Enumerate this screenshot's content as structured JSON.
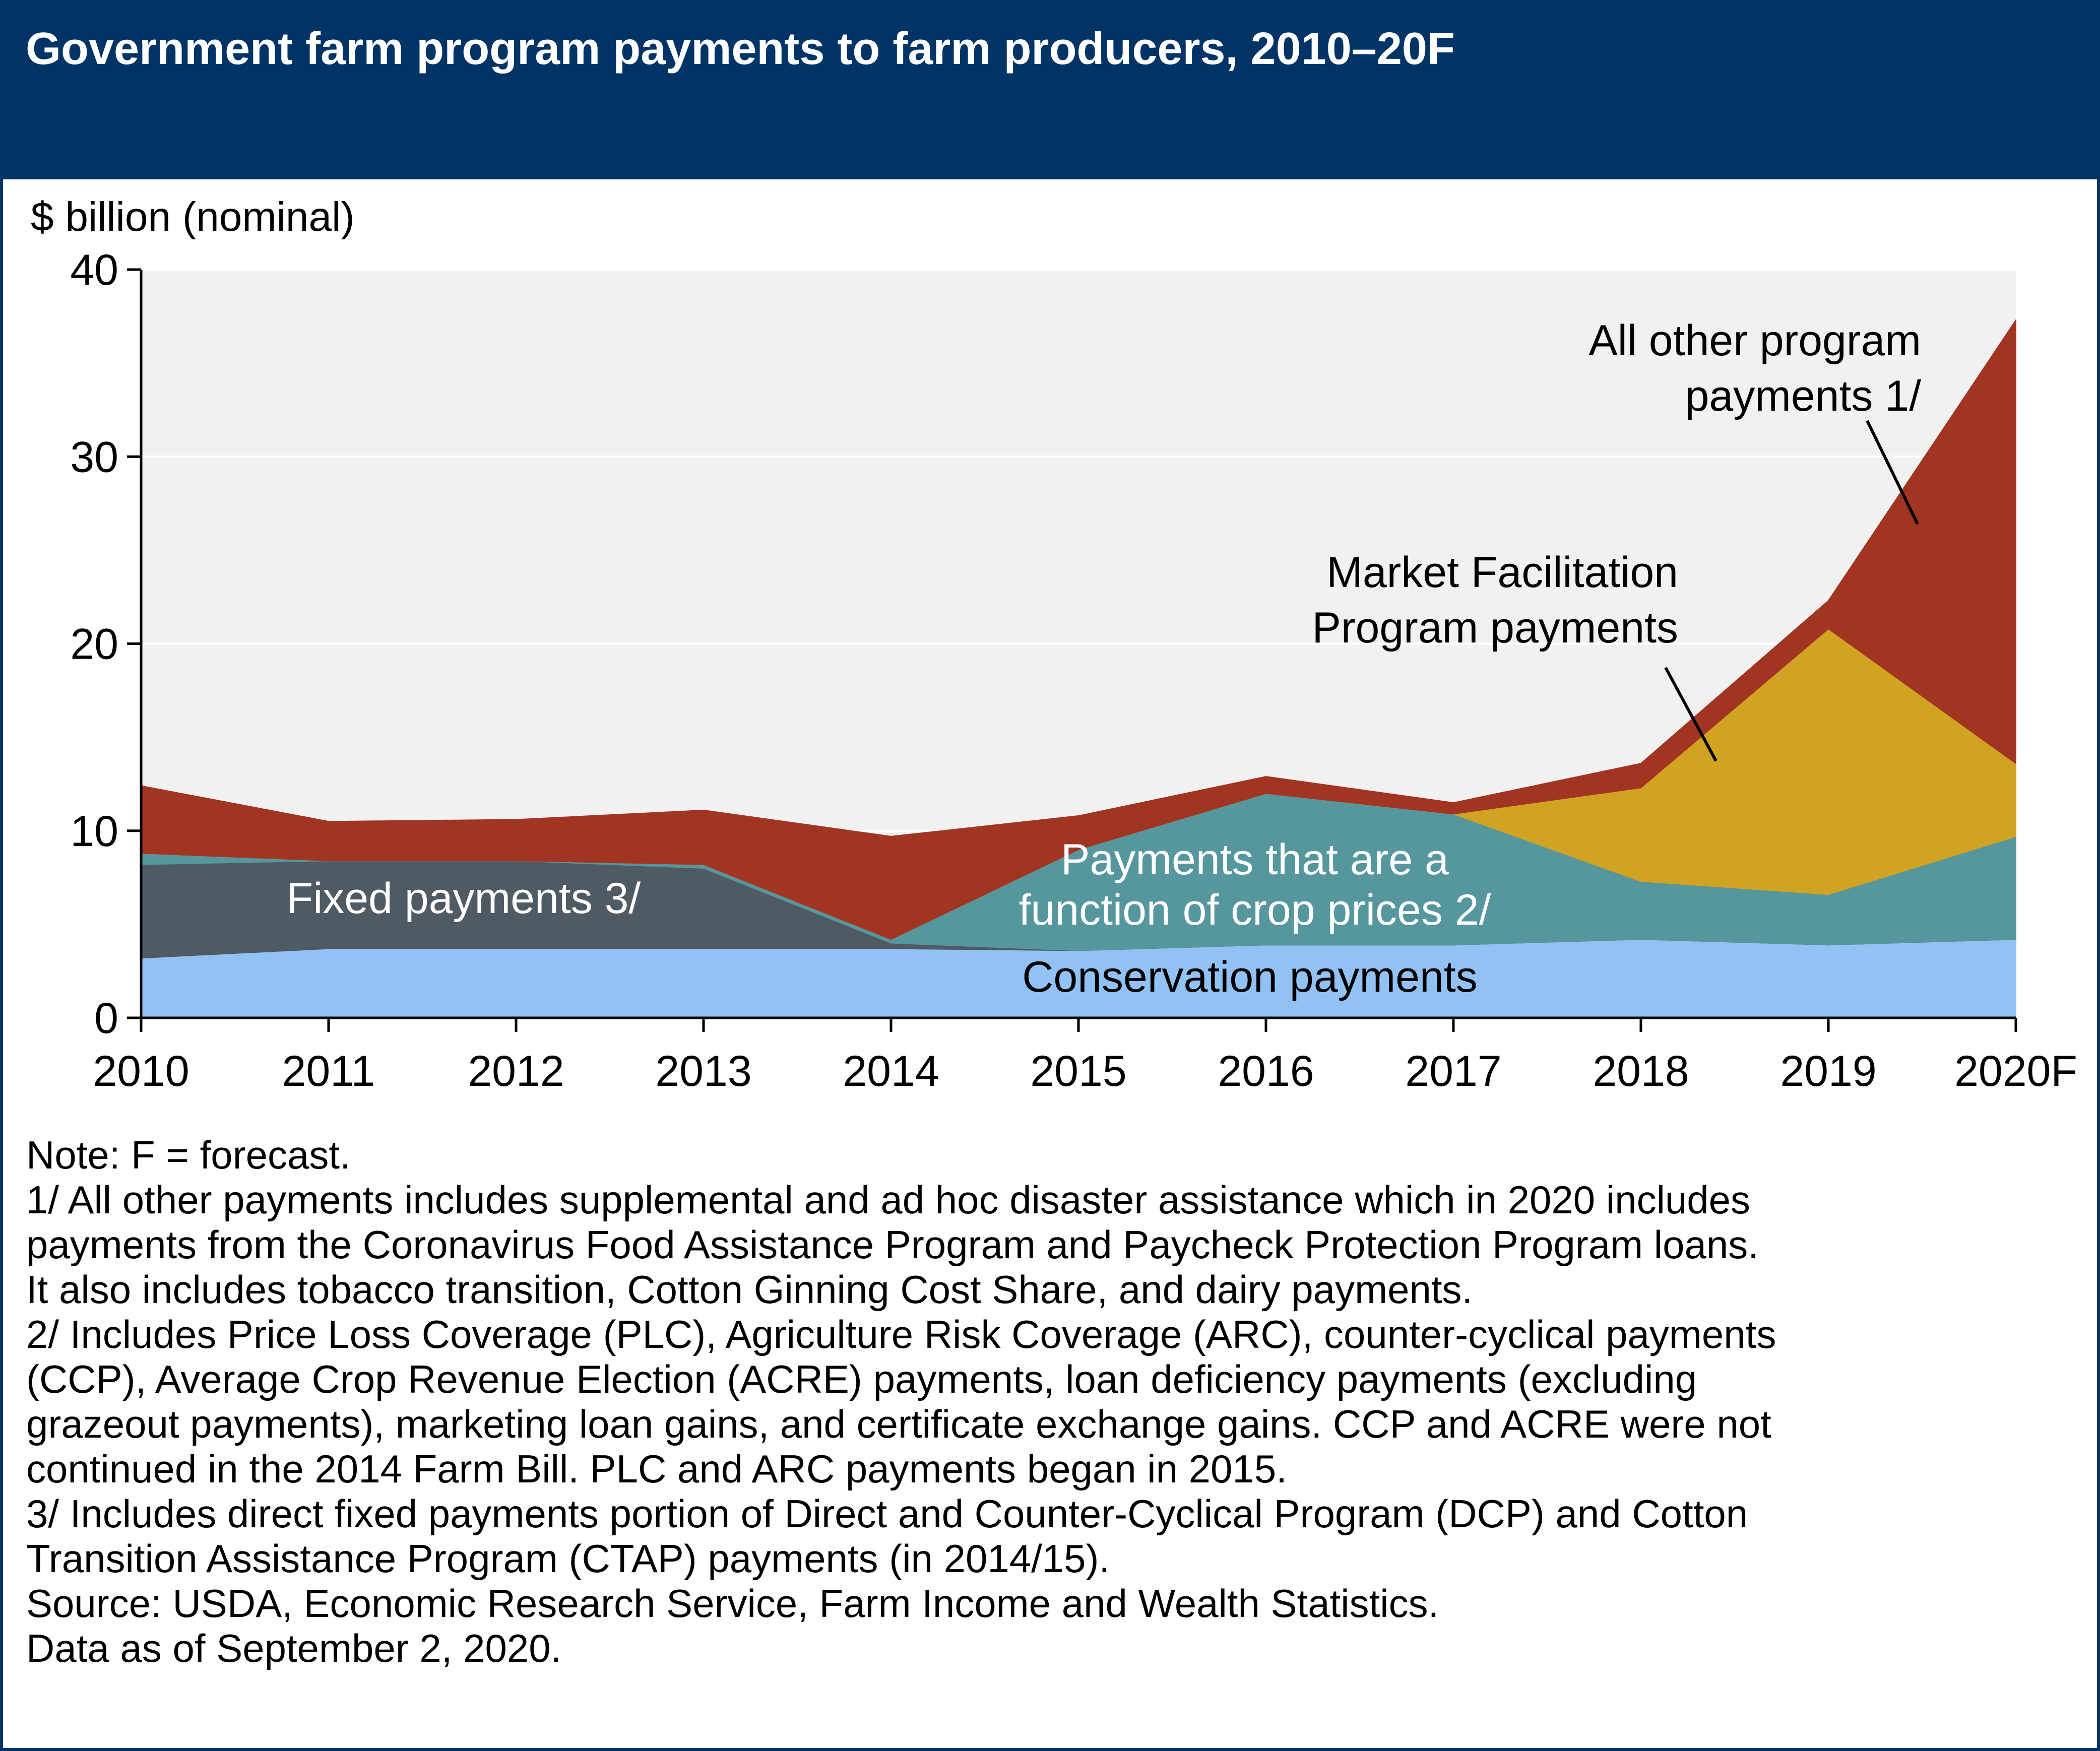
{
  "title": "Government farm program payments to farm producers, 2010–20F",
  "colors": {
    "header_bg": "#003366",
    "plot_bg": "#f1f1f1",
    "conservation": "#92c2f3",
    "fixed": "#4f5a63",
    "crop_price": "#56979d",
    "mfp": "#d1a322",
    "other": "#a13522"
  },
  "chart_data": {
    "type": "area",
    "stacked": true,
    "ylabel": "$ billion (nominal)",
    "ylim": [
      0,
      40
    ],
    "yticks": [
      "0",
      "10",
      "20",
      "30",
      "40"
    ],
    "categories": [
      "2010",
      "2011",
      "2012",
      "2013",
      "2014",
      "2015",
      "2016",
      "2017",
      "2018",
      "2019",
      "2020F"
    ],
    "grid": true,
    "series": [
      {
        "name": "Conservation payments",
        "color": "#92c2f3",
        "values": [
          3.2,
          3.7,
          3.7,
          3.7,
          3.7,
          3.6,
          3.9,
          3.9,
          4.2,
          3.9,
          4.2
        ]
      },
      {
        "name": "Fixed payments 3/",
        "color": "#4f5a63",
        "values": [
          5.0,
          4.7,
          4.7,
          4.3,
          0.3,
          0,
          0,
          0,
          0,
          0,
          0
        ]
      },
      {
        "name": "Payments that are a function of crop prices 2/",
        "color": "#56979d",
        "values": [
          0.6,
          0,
          0,
          0.2,
          0.2,
          5.4,
          8.1,
          7.0,
          3.1,
          2.7,
          5.5
        ]
      },
      {
        "name": "Market Facilitation Program payments",
        "color": "#d1a322",
        "values": [
          0,
          0,
          0,
          0,
          0,
          0,
          0,
          0,
          5.0,
          14.2,
          3.9
        ]
      },
      {
        "name": "All other program payments 1/",
        "color": "#a13522",
        "values": [
          3.6,
          2.1,
          2.2,
          2.9,
          5.5,
          1.8,
          0.9,
          0.6,
          1.3,
          1.5,
          23.7
        ]
      }
    ],
    "annotations": [
      {
        "text": [
          "All other program",
          "payments 1/"
        ]
      },
      {
        "text": [
          "Market Facilitation",
          "Program payments"
        ]
      },
      {
        "text": [
          "Payments that are a",
          "function of crop prices 2/"
        ]
      },
      {
        "text": [
          "Fixed payments 3/"
        ]
      },
      {
        "text": [
          "Conservation payments"
        ]
      }
    ]
  },
  "notes": [
    "Note: F = forecast.",
    "1/ All other payments includes supplemental and ad hoc disaster assistance which in 2020 includes",
    "payments from the Coronavirus Food Assistance Program and Paycheck Protection Program loans.",
    "It also includes tobacco transition, Cotton Ginning Cost Share, and dairy payments.",
    "2/ Includes Price Loss Coverage (PLC), Agriculture Risk Coverage (ARC), counter-cyclical payments",
    "(CCP), Average Crop Revenue Election (ACRE) payments, loan deficiency payments (excluding",
    "grazeout payments), marketing loan gains, and certificate exchange gains. CCP and ACRE were not",
    "continued in the 2014 Farm Bill. PLC and ARC payments began in 2015.",
    "3/ Includes direct fixed payments portion of Direct and Counter-Cyclical Program (DCP) and Cotton",
    "Transition Assistance Program (CTAP) payments (in 2014/15).",
    "Source: USDA, Economic Research Service, Farm Income and Wealth Statistics.",
    "Data as of September 2, 2020."
  ]
}
